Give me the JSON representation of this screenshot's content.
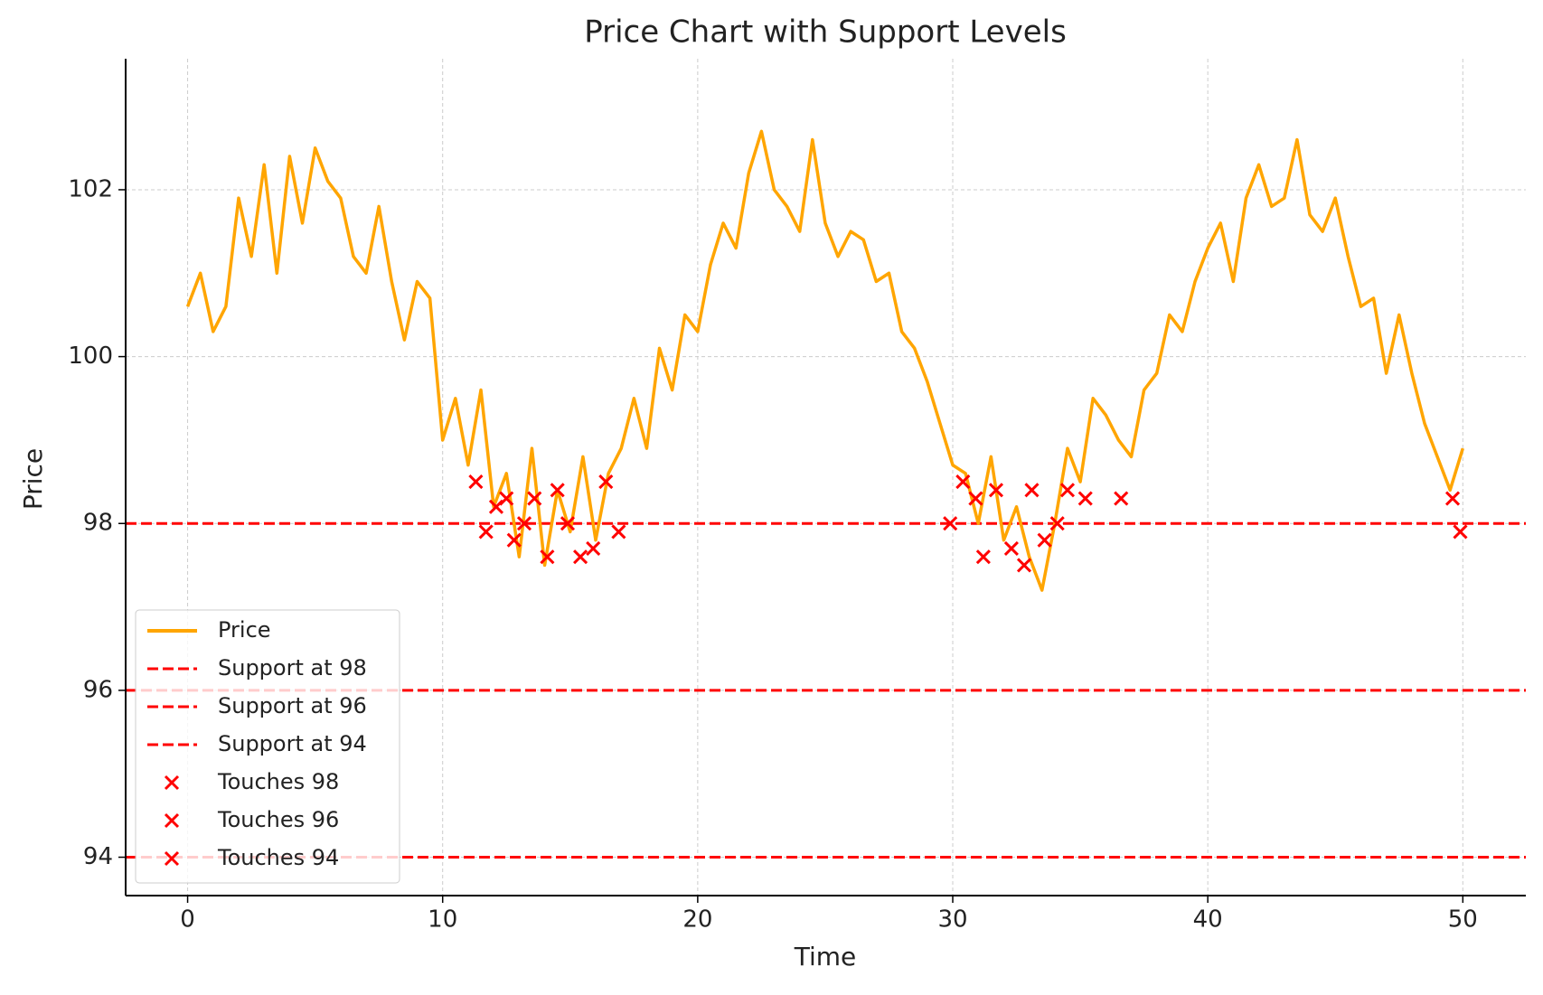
{
  "chart_data": {
    "type": "line",
    "title": "Price Chart with Support Levels",
    "x_label": "Time",
    "y_label": "Price",
    "xlim": [
      -2.43,
      52.47
    ],
    "ylim": [
      93.54,
      103.57
    ],
    "xticks": [
      0,
      10,
      20,
      30,
      40,
      50
    ],
    "yticks": [
      94,
      96,
      98,
      100,
      102
    ],
    "grid": true,
    "legend": "lower left",
    "series": [
      {
        "name": "Price",
        "color": "#ffa500",
        "x": [
          0,
          0.5,
          1,
          1.5,
          2,
          2.5,
          3,
          3.5,
          4,
          4.5,
          5,
          5.5,
          6,
          6.5,
          7,
          7.5,
          8,
          8.5,
          9,
          9.5,
          10,
          10.5,
          11,
          11.5,
          12,
          12.5,
          13,
          13.5,
          14,
          14.5,
          15,
          15.5,
          16,
          16.5,
          17,
          17.5,
          18,
          18.5,
          19,
          19.5,
          20,
          20.5,
          21,
          21.5,
          22,
          22.5,
          23,
          23.5,
          24,
          24.5,
          25,
          25.5,
          26,
          26.5,
          27,
          27.5,
          28,
          28.5,
          29,
          29.5,
          30,
          30.5,
          31,
          31.5,
          32,
          32.5,
          33,
          33.5,
          34,
          34.5,
          35,
          35.5,
          36,
          36.5,
          37,
          37.5,
          38,
          38.5,
          39,
          39.5,
          40,
          40.5,
          41,
          41.5,
          42,
          42.5,
          43,
          43.5,
          44,
          44.5,
          45,
          45.5,
          46,
          46.5,
          47,
          47.5,
          48,
          48.5,
          49,
          49.5,
          50
        ],
        "values": [
          100.6,
          101.0,
          100.3,
          100.6,
          101.9,
          101.2,
          102.3,
          101.0,
          102.4,
          101.6,
          102.5,
          102.1,
          101.9,
          101.2,
          101.0,
          101.8,
          100.9,
          100.2,
          100.9,
          100.7,
          99.0,
          99.5,
          98.7,
          99.6,
          98.2,
          98.6,
          97.6,
          98.9,
          97.5,
          98.4,
          97.9,
          98.8,
          97.8,
          98.6,
          98.9,
          99.5,
          98.9,
          100.1,
          99.6,
          100.5,
          100.3,
          101.1,
          101.6,
          101.3,
          102.2,
          102.7,
          102.0,
          101.8,
          101.5,
          102.6,
          101.6,
          101.2,
          101.5,
          101.4,
          100.9,
          101.0,
          100.3,
          100.1,
          99.7,
          99.2,
          98.7,
          98.6,
          98.0,
          98.8,
          97.8,
          98.2,
          97.6,
          97.2,
          98.0,
          98.9,
          98.5,
          99.5,
          99.3,
          99.0,
          98.8,
          99.6,
          99.8,
          100.5,
          100.3,
          100.9,
          101.3,
          101.6,
          100.9,
          101.9,
          102.3,
          101.8,
          101.9,
          102.6,
          101.7,
          101.5,
          101.9,
          101.2,
          100.6,
          100.7,
          99.8,
          100.5,
          99.8,
          99.2,
          98.8,
          98.4,
          98.9
        ]
      }
    ],
    "hlines": [
      {
        "name": "Support at 98",
        "value": 98,
        "color": "#ff0000"
      },
      {
        "name": "Support at 96",
        "value": 96,
        "color": "#ff0000"
      },
      {
        "name": "Support at 94",
        "value": 94,
        "color": "#ff0000"
      }
    ],
    "scatter_series": [
      {
        "name": "Touches 98",
        "color": "#ff0000",
        "x": [
          11.3,
          11.7,
          12.1,
          12.5,
          12.8,
          13.2,
          13.6,
          14.1,
          14.5,
          14.9,
          15.4,
          15.9,
          16.4,
          16.9,
          29.9,
          30.4,
          30.9,
          31.2,
          31.7,
          32.3,
          32.8,
          33.1,
          33.6,
          34.1,
          34.5,
          35.2,
          36.6,
          49.6,
          49.9
        ],
        "values": [
          98.5,
          97.9,
          98.2,
          98.3,
          97.8,
          98.0,
          98.3,
          97.6,
          98.4,
          98.0,
          97.6,
          97.7,
          98.5,
          97.9,
          98.0,
          98.5,
          98.3,
          97.6,
          98.4,
          97.7,
          97.5,
          98.4,
          97.8,
          98.0,
          98.4,
          98.3,
          98.3,
          98.3,
          97.9
        ]
      },
      {
        "name": "Touches 96",
        "color": "#ff0000",
        "x": [],
        "values": []
      },
      {
        "name": "Touches 94",
        "color": "#ff0000",
        "x": [],
        "values": []
      }
    ]
  }
}
